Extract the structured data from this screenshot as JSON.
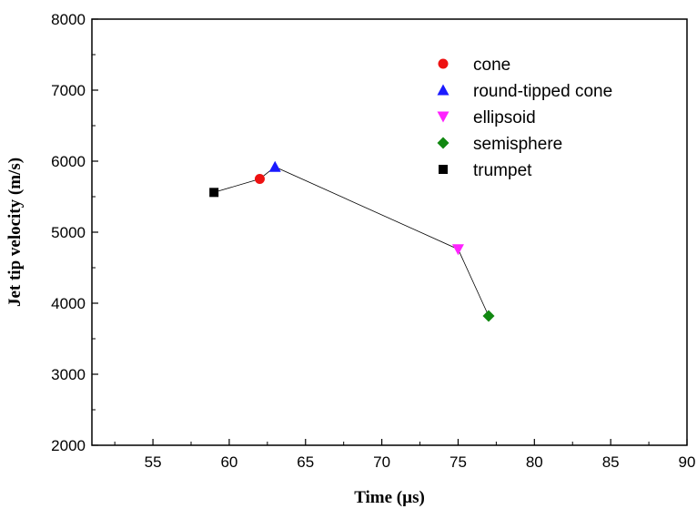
{
  "chart_data": {
    "type": "line",
    "title": "",
    "xlabel": "Time (µs)",
    "ylabel": "Jet tip velocity (m/s)",
    "xlim": [
      51,
      90
    ],
    "ylim": [
      2000,
      8000
    ],
    "xticks": [
      55,
      60,
      65,
      70,
      75,
      80,
      85,
      90
    ],
    "yticks": [
      2000,
      3000,
      4000,
      5000,
      6000,
      7000,
      8000
    ],
    "grid": false,
    "legend_position": "top-right",
    "connecting_line": {
      "color": "#000000",
      "order": [
        "trumpet",
        "cone",
        "round-tipped cone",
        "ellipsoid",
        "semisphere"
      ]
    },
    "series": [
      {
        "name": "cone",
        "marker": "circle",
        "color": "#ee1111",
        "x": [
          62
        ],
        "y": [
          5750
        ]
      },
      {
        "name": "round-tipped cone",
        "marker": "triangle-up",
        "color": "#1a1aff",
        "x": [
          63
        ],
        "y": [
          5920
        ]
      },
      {
        "name": "ellipsoid",
        "marker": "triangle-down",
        "color": "#ff22ff",
        "x": [
          75
        ],
        "y": [
          4760
        ]
      },
      {
        "name": "semisphere",
        "marker": "diamond",
        "color": "#118811",
        "x": [
          77
        ],
        "y": [
          3820
        ]
      },
      {
        "name": "trumpet",
        "marker": "square",
        "color": "#000000",
        "x": [
          59
        ],
        "y": [
          5560
        ]
      }
    ]
  }
}
